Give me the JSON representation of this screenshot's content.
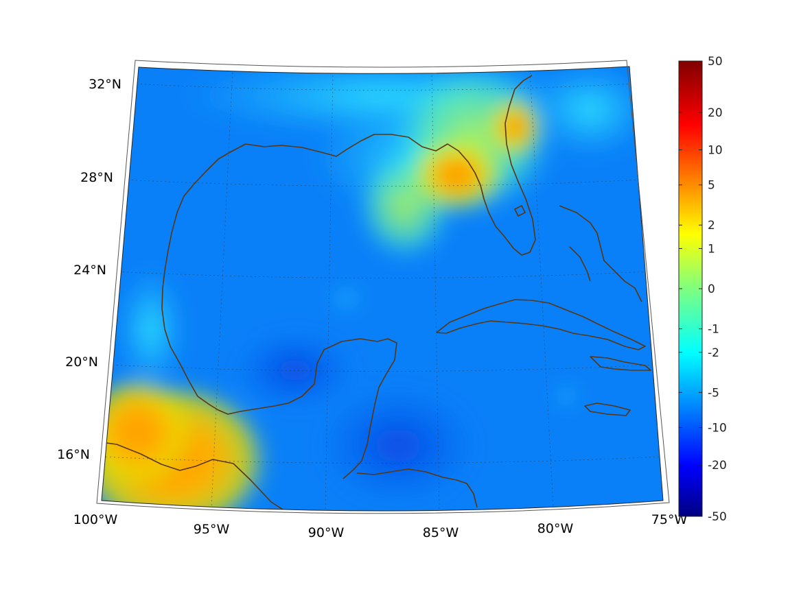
{
  "map": {
    "projection": "conic",
    "lon_range": [
      -100,
      -75
    ],
    "lat_range": [
      14,
      33
    ],
    "grid": true,
    "coastline_color": "#5a3510",
    "lat_ticks": [
      {
        "lat": 32,
        "label": "32°N"
      },
      {
        "lat": 28,
        "label": "28°N"
      },
      {
        "lat": 24,
        "label": "24°N"
      },
      {
        "lat": 20,
        "label": "20°N"
      },
      {
        "lat": 16,
        "label": "16°N"
      }
    ],
    "lon_ticks": [
      {
        "lon": -100,
        "label": "100°W"
      },
      {
        "lon": -95,
        "label": "95°W"
      },
      {
        "lon": -90,
        "label": "90°W"
      },
      {
        "lon": -85,
        "label": "85°W"
      },
      {
        "lon": -80,
        "label": "80°W"
      },
      {
        "lon": -75,
        "label": "75°W"
      }
    ],
    "field_regions": [
      {
        "name": "southwest-warm",
        "level": "orange-red"
      },
      {
        "name": "florida-west-coast",
        "level": "orange"
      },
      {
        "name": "central-gulf-plume",
        "level": "yellow-green"
      },
      {
        "name": "gulf-basin",
        "level": "blue"
      },
      {
        "name": "caribbean",
        "level": "dark-blue"
      }
    ]
  },
  "colorbar": {
    "colormap": "jet",
    "scale": "symmetric-log",
    "tick_labels": [
      "50",
      "20",
      "10",
      "5",
      "2",
      "1",
      "0",
      "-1",
      "-2",
      "-5",
      "-10",
      "-20",
      "-50"
    ],
    "tick_values": [
      50,
      20,
      10,
      5,
      2,
      1,
      0,
      -1,
      -2,
      -5,
      -10,
      -20,
      -50
    ]
  }
}
